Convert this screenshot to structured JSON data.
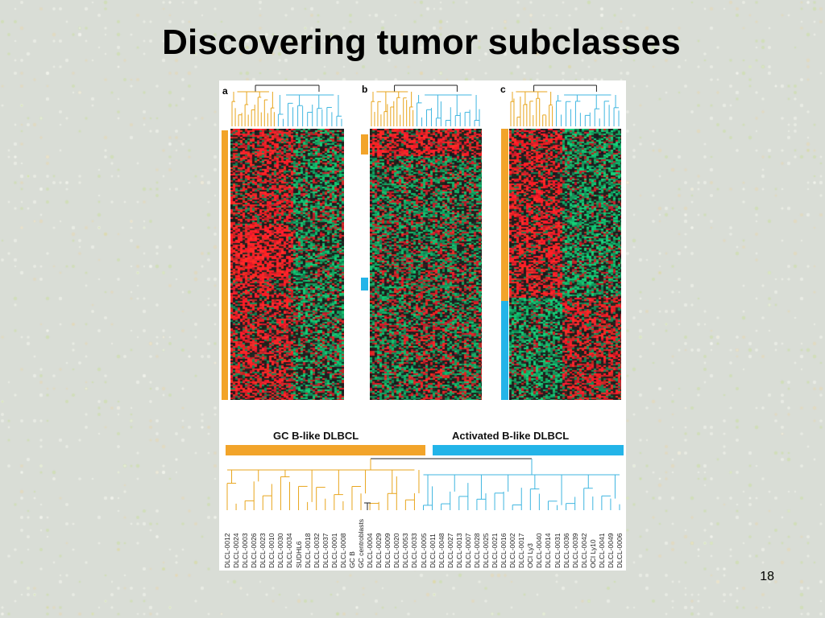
{
  "slide": {
    "title": "Discovering tumor subclasses",
    "page_number": "18"
  },
  "figure": {
    "panels": [
      {
        "letter": "a"
      },
      {
        "letter": "b"
      },
      {
        "letter": "c"
      }
    ],
    "class_labels": {
      "gc": "GC B-like DLBCL",
      "activated": "Activated B-like DLBCL"
    },
    "colors": {
      "gc_branch": "#e8a51c",
      "activated_branch": "#3fb6e0",
      "gc_bar": "#f2a42a",
      "activated_bar": "#23b4e8",
      "heatmap_red": "#e8242c",
      "heatmap_green": "#12a060",
      "heatmap_black": "#141414"
    },
    "gc_samples": [
      "DLCL-0012",
      "DLCL-0024",
      "DLCL-0003",
      "DLCL-0026",
      "DLCL-0023",
      "DLCL-0010",
      "DLCL-0030",
      "DLCL-0034",
      "SUDHL6",
      "DLCL-0018",
      "DLCL-0032",
      "DLCL-0037",
      "DLCL-0001",
      "DLCL-0008",
      "GC B",
      "GC centroblasts",
      "DLCL-0004",
      "DLCL-0029",
      "DLCL-0009",
      "DLCL-0020",
      "DLCL-0053",
      "DLCL-0033"
    ],
    "activated_samples": [
      "DLCL-0005",
      "DLCL-0011",
      "DLCL-0048",
      "DLCL-0027",
      "DLCL-0013",
      "DLCL-0007",
      "DLCL-0028",
      "DLCL-0025",
      "DLCL-0021",
      "DLCL-0016",
      "DLCL-0002",
      "DLCL-0017",
      "OCI Ly3",
      "DLCL-0040",
      "DLCL-0014",
      "DLCL-0031",
      "DLCL-0036",
      "DLCL-0039",
      "DLCL-0042",
      "OCI Ly10",
      "DLCL-0041",
      "DLCL-0049",
      "DLCL-0006"
    ]
  }
}
